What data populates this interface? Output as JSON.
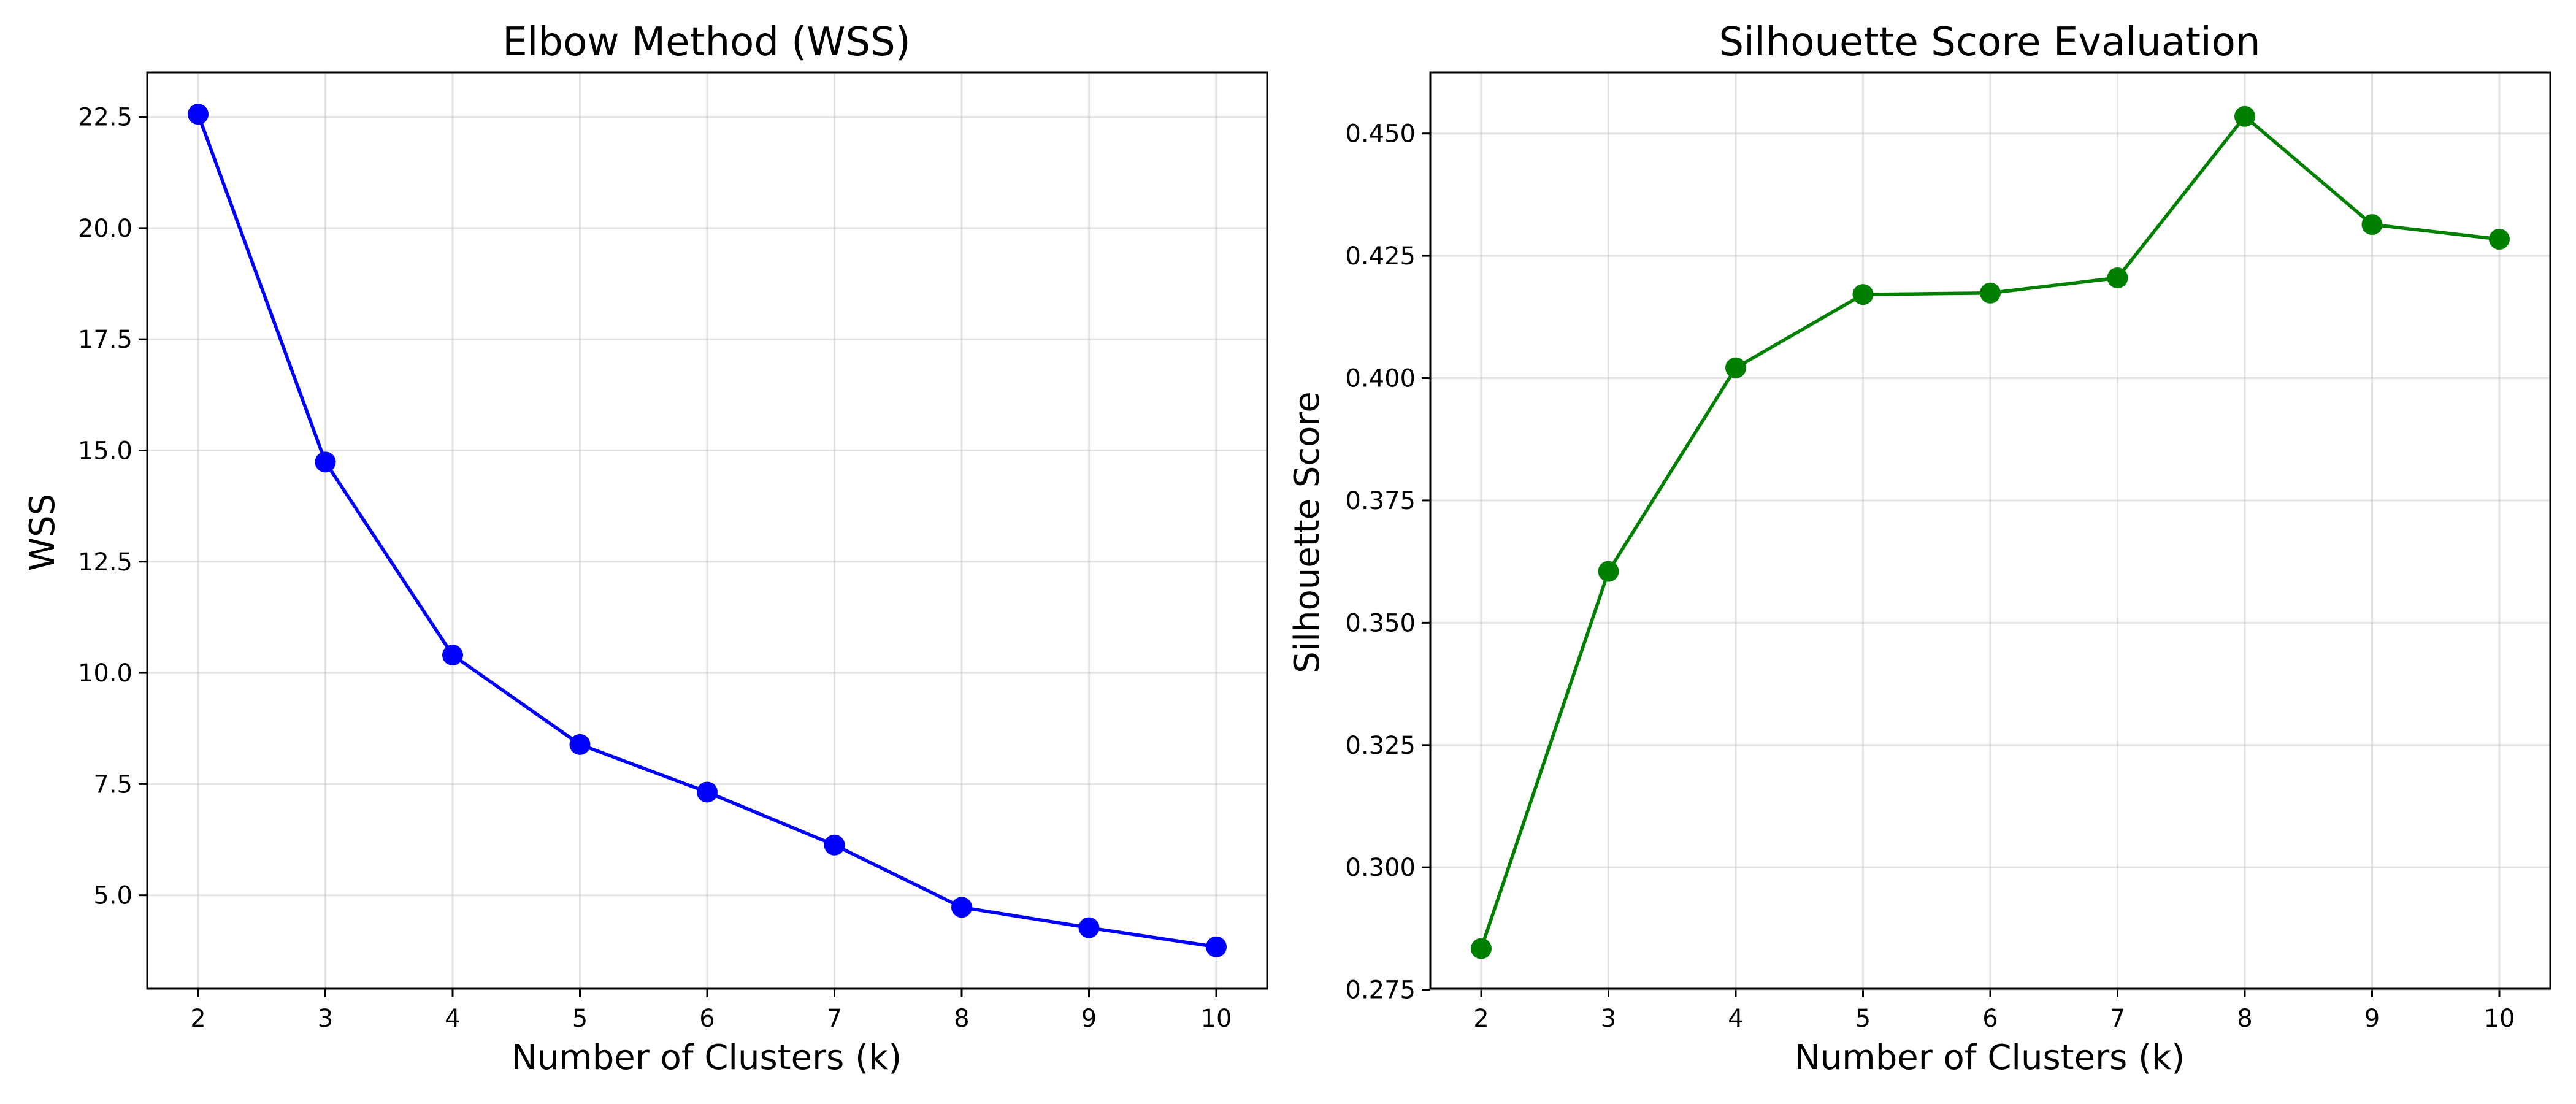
{
  "chart_data": [
    {
      "type": "line",
      "title": "Elbow Method (WSS)",
      "xlabel": "Number of Clusters (k)",
      "ylabel": "WSS",
      "x": [
        2,
        3,
        4,
        5,
        6,
        7,
        8,
        9,
        10
      ],
      "series": [
        {
          "values": [
            22.56,
            14.74,
            10.4,
            8.39,
            7.32,
            6.13,
            4.73,
            4.27,
            3.84
          ]
        }
      ],
      "xlim": [
        1.6,
        10.4
      ],
      "ylim": [
        2.9,
        23.5
      ],
      "xticks": [
        2,
        3,
        4,
        5,
        6,
        7,
        8,
        9,
        10
      ],
      "xtick_labels": [
        "2",
        "3",
        "4",
        "5",
        "6",
        "7",
        "8",
        "9",
        "10"
      ],
      "yticks": [
        5.0,
        7.5,
        10.0,
        12.5,
        15.0,
        17.5,
        20.0,
        22.5
      ],
      "ytick_labels": [
        "5.0",
        "7.5",
        "10.0",
        "12.5",
        "15.0",
        "17.5",
        "20.0",
        "22.5"
      ],
      "color": "#0000ff",
      "marker": "circle",
      "grid": true
    },
    {
      "type": "line",
      "title": "Silhouette Score Evaluation",
      "xlabel": "Number of Clusters (k)",
      "ylabel": "Silhouette Score",
      "x": [
        2,
        3,
        4,
        5,
        6,
        7,
        8,
        9,
        10
      ],
      "series": [
        {
          "values": [
            0.2834,
            0.3605,
            0.4021,
            0.4171,
            0.4174,
            0.4205,
            0.4535,
            0.4314,
            0.4284
          ]
        }
      ],
      "xlim": [
        1.6,
        10.4
      ],
      "ylim": [
        0.2752,
        0.4625
      ],
      "xticks": [
        2,
        3,
        4,
        5,
        6,
        7,
        8,
        9,
        10
      ],
      "xtick_labels": [
        "2",
        "3",
        "4",
        "5",
        "6",
        "7",
        "8",
        "9",
        "10"
      ],
      "yticks": [
        0.275,
        0.3,
        0.325,
        0.35,
        0.375,
        0.4,
        0.425,
        0.45
      ],
      "ytick_labels": [
        "0.275",
        "0.300",
        "0.325",
        "0.350",
        "0.375",
        "0.400",
        "0.425",
        "0.450"
      ],
      "color": "#008000",
      "marker": "circle",
      "grid": true
    }
  ]
}
